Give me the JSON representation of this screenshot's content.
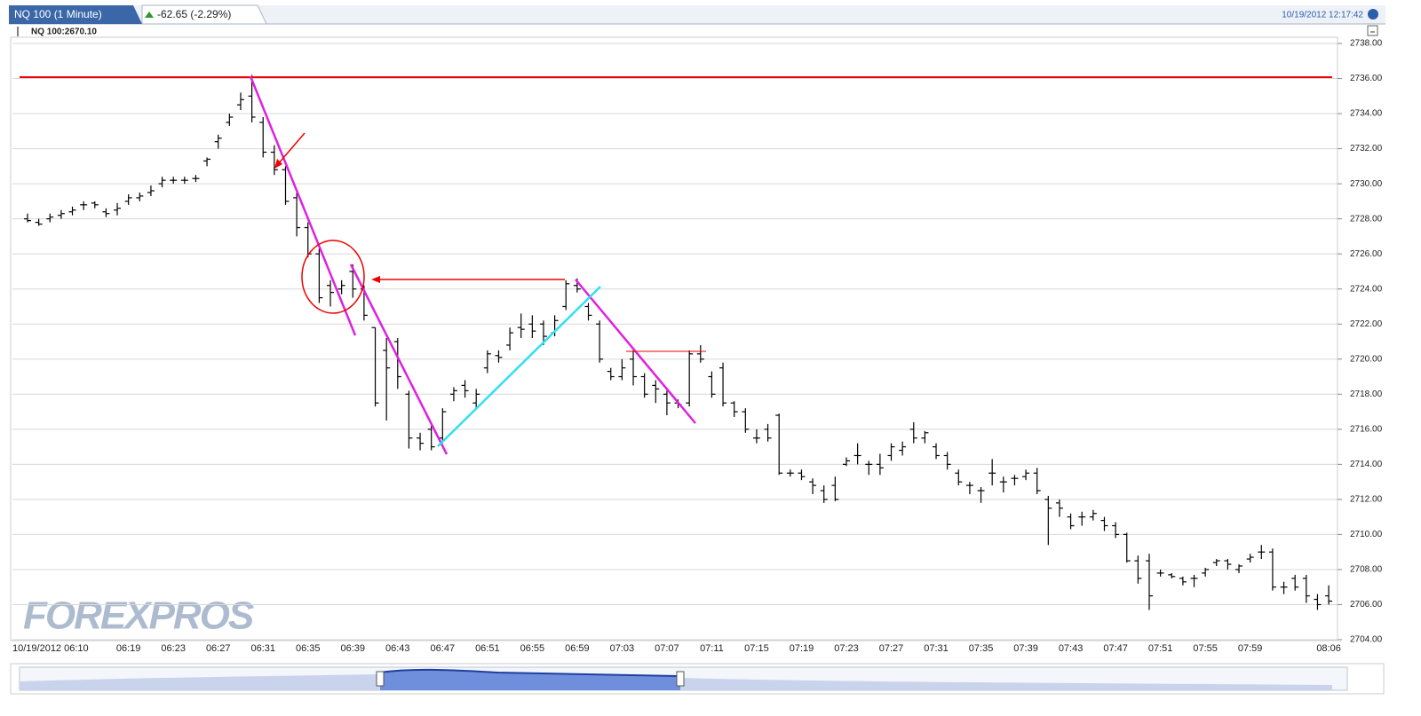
{
  "chart_data": {
    "type": "ohlc",
    "title": "NQ 100 (1 Minute)",
    "change": "-62.65 (-2.29%)",
    "timestamp": "10/19/2012 12:17:42",
    "watermark": "FOREXPROS",
    "categories": [
      "10/19/2012 06:10",
      null,
      null,
      null,
      null,
      null,
      null,
      null,
      null,
      "06:19",
      null,
      null,
      null,
      "06:23",
      null,
      null,
      null,
      "06:27",
      null,
      null,
      null,
      "06:31",
      null,
      null,
      null,
      "06:35",
      null,
      null,
      null,
      "06:39",
      null,
      null,
      null,
      "06:43",
      null,
      null,
      null,
      "06:47",
      null,
      null,
      null,
      "06:51",
      null,
      null,
      null,
      "06:55",
      null,
      null,
      null,
      "06:59",
      null,
      null,
      null,
      "07:03",
      null,
      null,
      null,
      "07:07",
      null,
      null,
      null,
      "07:11",
      null,
      null,
      null,
      "07:15",
      null,
      null,
      null,
      "07:19",
      null,
      null,
      null,
      "07:23",
      null,
      null,
      null,
      "07:27",
      null,
      null,
      null,
      "07:31",
      null,
      null,
      null,
      "07:35",
      null,
      null,
      null,
      "07:39",
      null,
      null,
      null,
      "07:43",
      null,
      null,
      null,
      "07:47",
      null,
      null,
      null,
      "07:51",
      null,
      null,
      null,
      "07:55",
      null,
      null,
      null,
      "07:59",
      null,
      null,
      null,
      null,
      null,
      null,
      "08:06"
    ],
    "series": [
      {
        "name": "NQ 100:2670.10",
        "color": "#000000",
        "open": [
          2728.0,
          2727.8,
          2728.0,
          2728.2,
          2728.4,
          2728.8,
          2728.9,
          2728.4,
          2728.5,
          2729.0,
          2729.2,
          2729.5,
          2730.0,
          2730.2,
          2730.2,
          2730.3,
          2731.3,
          2732.4,
          2733.5,
          2734.5,
          2735.0,
          2733.5,
          2731.8,
          2730.8,
          2729.2,
          2727.5,
          2726.0,
          2724.2,
          2724.0,
          2725.0,
          2724.0,
          2721.8,
          2720.5,
          2721.0,
          2718.0,
          2715.5,
          2716.0,
          2715.5,
          2718.0,
          2718.5,
          2717.5,
          2719.5,
          2720.2,
          2720.8,
          2721.8,
          2722.0,
          2722.0,
          2721.5,
          2723.0,
          2724.2,
          2723.0,
          2722.0,
          2719.3,
          2719.0,
          2720.0,
          2719.0,
          2718.5,
          2718.0,
          2717.5,
          2717.5,
          2720.3,
          2719.0,
          2719.5,
          2717.5,
          2717.0,
          2715.5,
          2716.0,
          2716.8,
          2713.5,
          2713.5,
          2713.0,
          2712.5,
          2712.8,
          2714.0,
          2714.5,
          2714.0,
          2714.0,
          2714.5,
          2714.8,
          2716.0,
          2715.5,
          2715.0,
          2714.5,
          2713.5,
          2712.8,
          2712.5,
          2713.5,
          2713.0,
          2713.2,
          2713.3,
          2713.5,
          2712.0,
          2711.8,
          2711.0,
          2711.0,
          2711.0,
          2710.8,
          2710.5,
          2710.0,
          2708.5,
          2708.5,
          2707.8,
          2707.7,
          2707.5,
          2707.5,
          2707.8,
          2708.4,
          2708.5,
          2708.0,
          2708.6,
          2709.0,
          2709.0,
          2707.0,
          2707.5,
          2707.5,
          2706.3,
          2706.5
        ],
        "high": [
          2728.3,
          2728.0,
          2728.3,
          2728.5,
          2728.7,
          2729.0,
          2729.0,
          2728.6,
          2728.9,
          2729.4,
          2729.5,
          2729.9,
          2730.4,
          2730.4,
          2730.4,
          2730.5,
          2731.5,
          2732.8,
          2734.0,
          2735.2,
          2736.2,
          2733.8,
          2732.2,
          2731.0,
          2729.5,
          2727.8,
          2726.3,
          2724.5,
          2724.5,
          2725.4,
          2724.2,
          2721.8,
          2721.2,
          2721.2,
          2718.2,
          2715.8,
          2716.2,
          2717.2,
          2718.4,
          2718.8,
          2718.3,
          2720.5,
          2720.5,
          2721.8,
          2722.6,
          2722.5,
          2722.2,
          2722.5,
          2724.5,
          2724.6,
          2723.2,
          2722.2,
          2719.5,
          2720.0,
          2720.5,
          2719.2,
          2718.8,
          2718.2,
          2717.7,
          2720.5,
          2720.8,
          2719.3,
          2719.8,
          2717.6,
          2717.2,
          2716.0,
          2716.3,
          2716.9,
          2713.7,
          2713.7,
          2713.2,
          2712.8,
          2713.3,
          2714.4,
          2715.2,
          2714.2,
          2714.6,
          2715.2,
          2715.3,
          2716.4,
          2715.9,
          2715.2,
          2714.7,
          2713.7,
          2713.0,
          2712.7,
          2714.3,
          2713.3,
          2713.4,
          2713.7,
          2713.8,
          2712.2,
          2712.0,
          2711.2,
          2711.3,
          2711.4,
          2711.0,
          2710.7,
          2710.1,
          2708.8,
          2708.9,
          2708.0,
          2707.8,
          2707.6,
          2707.7,
          2708.1,
          2708.6,
          2708.6,
          2708.3,
          2708.9,
          2709.4,
          2709.2,
          2707.3,
          2707.7,
          2707.7,
          2706.6,
          2707.1
        ],
        "low": [
          2727.8,
          2727.6,
          2727.8,
          2728.0,
          2728.2,
          2728.5,
          2728.6,
          2728.1,
          2728.2,
          2728.8,
          2729.0,
          2729.3,
          2729.8,
          2730.0,
          2730.0,
          2730.1,
          2731.0,
          2732.0,
          2733.3,
          2734.2,
          2733.5,
          2731.5,
          2730.5,
          2728.8,
          2727.0,
          2725.8,
          2723.2,
          2723.0,
          2723.7,
          2723.5,
          2722.2,
          2717.3,
          2716.5,
          2718.3,
          2714.9,
          2714.8,
          2714.8,
          2715.2,
          2717.6,
          2717.8,
          2717.2,
          2719.2,
          2719.8,
          2720.5,
          2721.2,
          2721.2,
          2720.8,
          2721.3,
          2722.8,
          2723.8,
          2722.2,
          2719.8,
          2718.8,
          2718.8,
          2718.5,
          2717.8,
          2717.5,
          2716.8,
          2717.2,
          2717.3,
          2719.8,
          2717.8,
          2717.3,
          2716.7,
          2715.8,
          2715.2,
          2715.3,
          2713.4,
          2713.3,
          2713.1,
          2712.3,
          2711.8,
          2711.9,
          2713.9,
          2714.0,
          2713.4,
          2713.4,
          2714.2,
          2714.5,
          2715.2,
          2715.2,
          2714.3,
          2713.7,
          2712.8,
          2712.3,
          2711.8,
          2712.8,
          2712.4,
          2712.8,
          2713.1,
          2712.3,
          2709.4,
          2711.0,
          2710.3,
          2710.5,
          2710.8,
          2710.2,
          2709.8,
          2708.4,
          2707.2,
          2705.7,
          2707.6,
          2707.5,
          2707.1,
          2707.0,
          2707.6,
          2708.2,
          2708.0,
          2707.8,
          2708.4,
          2708.6,
          2706.8,
          2706.6,
          2706.8,
          2706.1,
          2705.7,
          2706.0
        ],
        "close": [
          2727.9,
          2727.7,
          2728.1,
          2728.3,
          2728.5,
          2728.8,
          2728.8,
          2728.3,
          2728.6,
          2729.2,
          2729.3,
          2729.6,
          2730.2,
          2730.2,
          2730.2,
          2730.3,
          2731.4,
          2732.6,
          2733.8,
          2734.8,
          2733.8,
          2731.8,
          2730.8,
          2729.0,
          2727.5,
          2726.0,
          2723.5,
          2723.8,
          2724.2,
          2724.0,
          2722.5,
          2717.5,
          2719.5,
          2719.0,
          2715.5,
          2715.2,
          2715.0,
          2717.0,
          2718.2,
          2718.2,
          2718.0,
          2720.3,
          2720.1,
          2721.5,
          2721.7,
          2721.6,
          2721.3,
          2722.2,
          2724.3,
          2724.0,
          2722.5,
          2720.0,
          2719.0,
          2719.5,
          2719.0,
          2718.0,
          2718.3,
          2717.5,
          2717.4,
          2720.3,
          2720.0,
          2718.0,
          2717.5,
          2717.0,
          2716.0,
          2715.5,
          2715.5,
          2713.5,
          2713.5,
          2713.3,
          2712.8,
          2712.0,
          2712.0,
          2714.2,
          2714.5,
          2714.0,
          2713.8,
          2715.0,
          2715.0,
          2715.5,
          2715.8,
          2714.5,
          2714.0,
          2713.0,
          2712.8,
          2712.5,
          2713.5,
          2713.0,
          2713.2,
          2713.5,
          2712.5,
          2711.5,
          2711.5,
          2710.5,
          2711.0,
          2711.2,
          2710.5,
          2710.0,
          2708.5,
          2707.5,
          2706.5,
          2707.8,
          2707.6,
          2707.3,
          2707.5,
          2708.0,
          2708.5,
          2708.3,
          2708.2,
          2708.7,
          2709.0,
          2707.0,
          2707.0,
          2707.0,
          2706.5,
          2706.0,
          2706.2
        ]
      }
    ],
    "ylim": [
      2704,
      2738
    ],
    "yticks": [
      {
        "value": 2704,
        "label": "2704.00"
      },
      {
        "value": 2706,
        "label": "2706.00"
      },
      {
        "value": 2708,
        "label": "2708.00"
      },
      {
        "value": 2710,
        "label": "2710.00"
      },
      {
        "value": 2712,
        "label": "2712.00"
      },
      {
        "value": 2714,
        "label": "2714.00"
      },
      {
        "value": 2716,
        "label": "2716.00"
      },
      {
        "value": 2718,
        "label": "2718.00"
      },
      {
        "value": 2720,
        "label": "2720.00"
      },
      {
        "value": 2722,
        "label": "2722.00"
      },
      {
        "value": 2724,
        "label": "2724.00"
      },
      {
        "value": 2726,
        "label": "2726.00"
      },
      {
        "value": 2728,
        "label": "2728.00"
      },
      {
        "value": 2730,
        "label": "2730.00"
      },
      {
        "value": 2732,
        "label": "2732.00"
      },
      {
        "value": 2734,
        "label": "2734.00"
      },
      {
        "value": 2736,
        "label": "2736.00"
      },
      {
        "value": 2738,
        "label": "2738.00"
      }
    ],
    "grid": true
  }
}
